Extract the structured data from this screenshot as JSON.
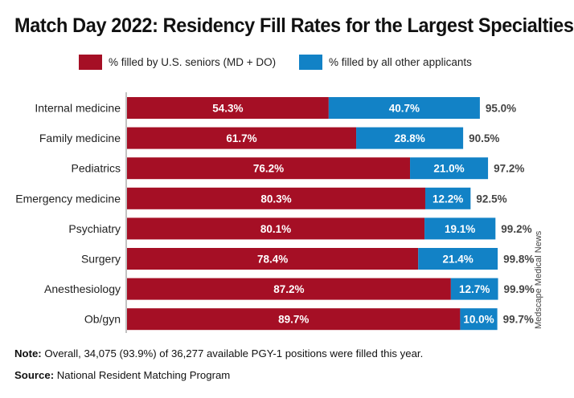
{
  "title": "Match Day 2022: Residency Fill Rates for the Largest Specialties",
  "legend": {
    "seniors": "% filled by U.S. seniors (MD + DO)",
    "others": "% filled by all other applicants"
  },
  "colors": {
    "seniors": "#a50f25",
    "others": "#1282c6",
    "axis": "#9a9a9a"
  },
  "chart_data": {
    "type": "bar",
    "orientation": "horizontal",
    "stacked": true,
    "categories": [
      "Internal medicine",
      "Family medicine",
      "Pediatrics",
      "Emergency medicine",
      "Psychiatry",
      "Surgery",
      "Anesthesiology",
      "Ob/gyn"
    ],
    "series": [
      {
        "name": "% filled by U.S. seniors (MD + DO)",
        "values": [
          54.3,
          61.7,
          76.2,
          80.3,
          80.1,
          78.4,
          87.2,
          89.7
        ]
      },
      {
        "name": "% filled by all other applicants",
        "values": [
          40.7,
          28.8,
          21.0,
          12.2,
          19.1,
          21.4,
          12.7,
          10.0
        ]
      }
    ],
    "totals": [
      95.0,
      90.5,
      97.2,
      92.5,
      99.2,
      99.8,
      99.9,
      99.7
    ],
    "xlim": [
      0,
      100
    ],
    "title": "Match Day 2022: Residency Fill Rates for the Largest Specialties",
    "legend_position": "top",
    "grid": false
  },
  "note": {
    "label": "Note:",
    "text": " Overall, 34,075 (93.9%) of 36,277 available PGY-1 positions were filled this year."
  },
  "source": {
    "label": "Source:",
    "text": " National Resident Matching Program"
  },
  "credit": "Medscape Medical News"
}
